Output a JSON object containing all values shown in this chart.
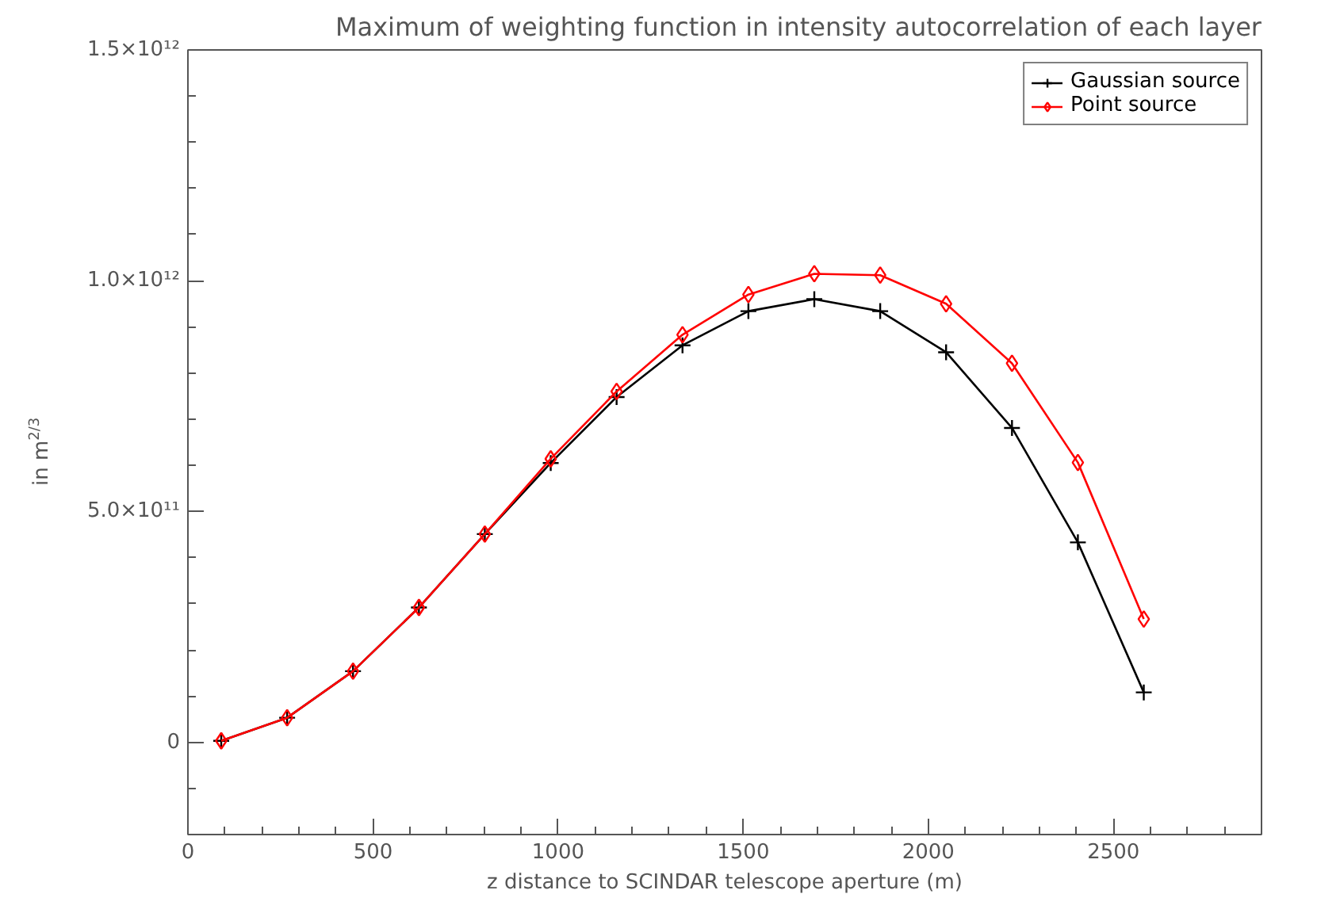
{
  "chart_data": {
    "type": "line",
    "title": "Maximum of weighting function in intensity autocorrelation of each layer",
    "xlabel": "z distance to SCINDAR telescope aperture (m)",
    "ylabel": "in m$^{2/3}$",
    "x": [
      90,
      268,
      446,
      624,
      802,
      980,
      1158,
      1336,
      1514,
      1692,
      1870,
      2048,
      2226,
      2404,
      2582
    ],
    "series": [
      {
        "name": "Gaussian source",
        "color": "#000000",
        "marker": "cross",
        "values": [
          3000000000.0,
          53000000000.0,
          154000000000.0,
          292000000000.0,
          451000000000.0,
          605000000000.0,
          748000000000.0,
          860000000000.0,
          934000000000.0,
          960000000000.0,
          934000000000.0,
          845000000000.0,
          681000000000.0,
          433000000000.0,
          108000000000.0
        ]
      },
      {
        "name": "Point source",
        "color": "#ff0000",
        "marker": "diamond",
        "values": [
          3000000000.0,
          53000000000.0,
          154000000000.0,
          292000000000.0,
          451000000000.0,
          614000000000.0,
          760000000000.0,
          883000000000.0,
          970000000000.0,
          1015000000000.0,
          1012000000000.0,
          950000000000.0,
          821000000000.0,
          606000000000.0,
          267000000000.0
        ]
      }
    ],
    "xlim": [
      0,
      2900
    ],
    "ylim": [
      -200000000000.0,
      1500000000000.0
    ],
    "xticks": [
      0,
      500,
      1000,
      1500,
      2000,
      2500
    ],
    "yticks": [
      {
        "value": 0,
        "label": "0"
      },
      {
        "value": 500000000000.0,
        "label": "5.0×10¹¹"
      },
      {
        "value": 1000000000000.0,
        "label": "1.0×10¹²"
      },
      {
        "value": 1500000000000.0,
        "label": "1.5×10¹²"
      }
    ],
    "grid": false,
    "legend": "top right",
    "line_style": "solid"
  }
}
